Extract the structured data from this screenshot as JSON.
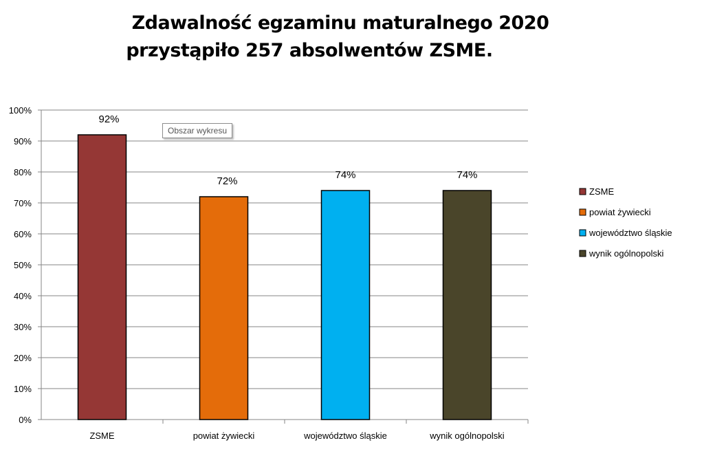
{
  "chart_data": {
    "type": "bar",
    "title": "Zdawalność  egzaminu maturalnego 2020",
    "subtitle": "przystąpiło 257 absolwentów ZSME.",
    "categories": [
      "ZSME",
      "powiat żywiecki",
      "województwo śląskie",
      "wynik ogólnopolski"
    ],
    "values": [
      92,
      72,
      74,
      74
    ],
    "data_labels": [
      "92%",
      "72%",
      "74%",
      "74%"
    ],
    "colors": [
      "#953735",
      "#e46c0a",
      "#00b0f0",
      "#4a452a"
    ],
    "ylim": [
      0,
      100
    ],
    "yticks": [
      "0%",
      "10%",
      "20%",
      "30%",
      "40%",
      "50%",
      "60%",
      "70%",
      "80%",
      "90%",
      "100%"
    ],
    "grid": true,
    "legend_position": "right",
    "legend": [
      "ZSME",
      "powiat żywiecki",
      "województwo śląskie",
      "wynik ogólnopolski"
    ]
  },
  "tooltip": "Obszar wykresu"
}
